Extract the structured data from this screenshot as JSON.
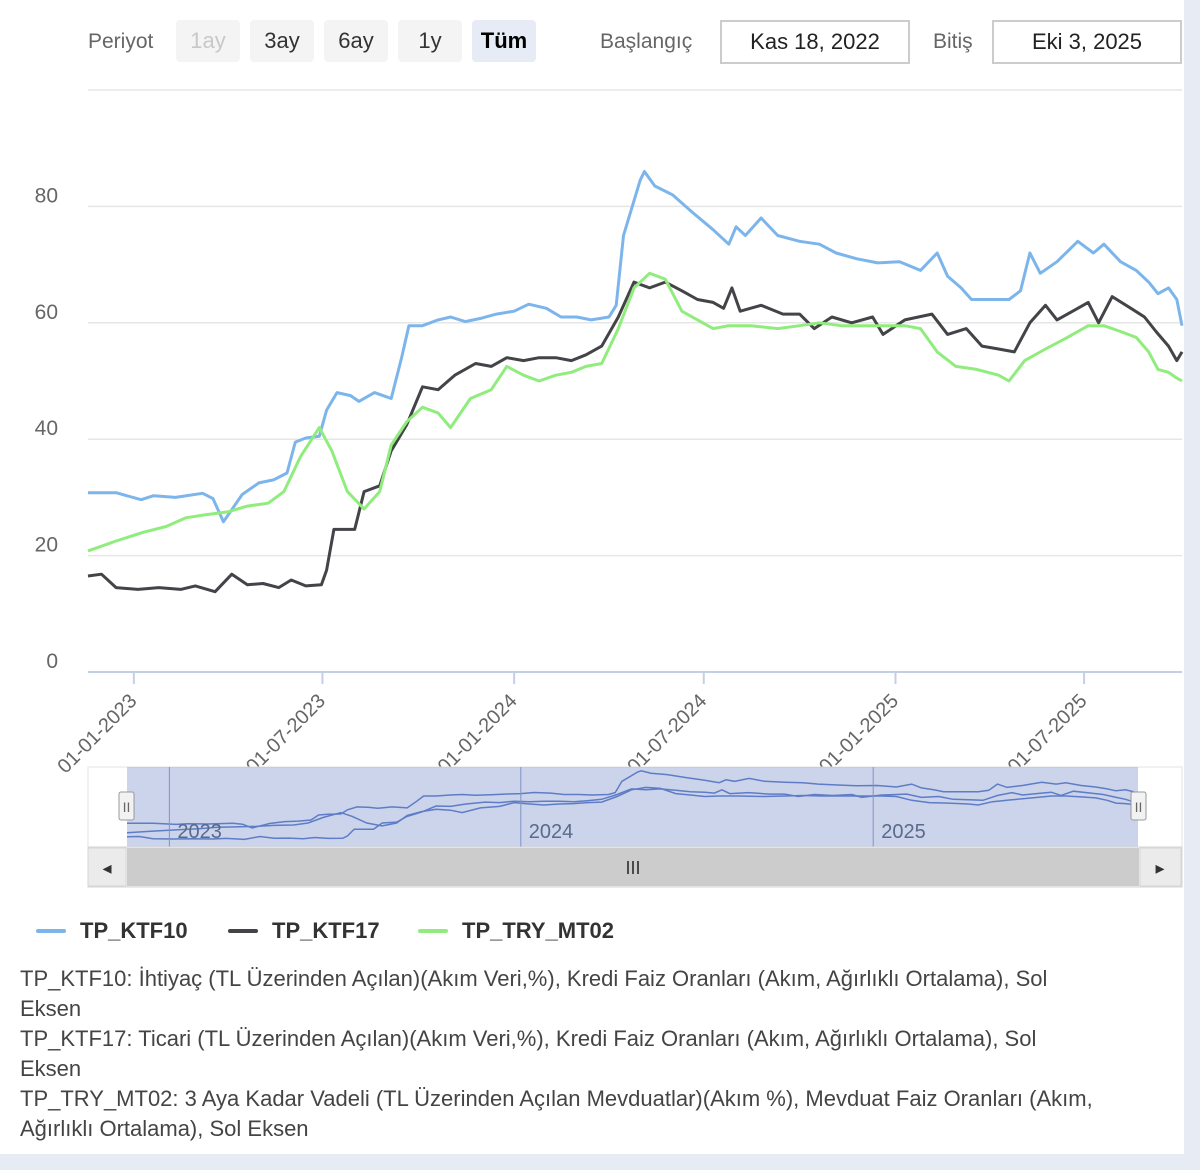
{
  "toolbar": {
    "period_label": "Periyot",
    "buttons": [
      {
        "label": "1ay",
        "state": "disabled"
      },
      {
        "label": "3ay",
        "state": "normal"
      },
      {
        "label": "6ay",
        "state": "normal"
      },
      {
        "label": "1y",
        "state": "normal"
      },
      {
        "label": "Tüm",
        "state": "active"
      }
    ],
    "start_label": "Başlangıç",
    "start_value": "Kas 18, 2022",
    "end_label": "Bitiş",
    "end_value": "Eki 3, 2025"
  },
  "navigator": {
    "year_labels": [
      "2023",
      "2024",
      "2025"
    ],
    "scroll_left_glyph": "◂",
    "scroll_right_glyph": "▸",
    "scroll_grip_glyph": "III",
    "handle_glyph": "II"
  },
  "legend": [
    {
      "name": "TP_KTF10",
      "color": "#7cb5ec"
    },
    {
      "name": "TP_KTF17",
      "color": "#434348"
    },
    {
      "name": "TP_TRY_MT02",
      "color": "#90ed7d"
    }
  ],
  "notes": [
    "TP_KTF10: İhtiyaç (TL Üzerinden Açılan)(Akım Veri,%), Kredi Faiz Oranları (Akım, Ağırlıklı Ortalama), Sol Eksen",
    "TP_KTF17: Ticari (TL Üzerinden Açılan)(Akım Veri,%), Kredi Faiz Oranları (Akım, Ağırlıklı Ortalama), Sol Eksen",
    "TP_TRY_MT02: 3 Aya Kadar Vadeli (TL Üzerinden Açılan Mevduatlar)(Akım %), Mevduat Faiz Oranları (Akım, Ağırlıklı Ortalama), Sol Eksen"
  ],
  "chart_data": {
    "type": "line",
    "title": "",
    "xlabel": "",
    "ylabel": "",
    "x_range": [
      "2022-11-18",
      "2025-10-03"
    ],
    "ylim": [
      0,
      100
    ],
    "yticks": [
      0,
      20,
      40,
      60,
      80
    ],
    "xticks": [
      "01-01-2023",
      "01-07-2023",
      "01-01-2024",
      "01-07-2024",
      "01-01-2025",
      "01-07-2025"
    ],
    "x_tick_dates": [
      "2023-01-01",
      "2023-07-01",
      "2024-01-01",
      "2024-07-01",
      "2025-01-01",
      "2025-07-01"
    ],
    "grid": true,
    "legend_position": "bottom-left",
    "series": [
      {
        "name": "TP_KTF10",
        "color": "#7cb5ec",
        "points": [
          [
            "2022-11-18",
            30.8
          ],
          [
            "2022-12-15",
            30.8
          ],
          [
            "2023-01-08",
            29.6
          ],
          [
            "2023-01-20",
            30.3
          ],
          [
            "2023-02-10",
            30.0
          ],
          [
            "2023-03-08",
            30.7
          ],
          [
            "2023-03-18",
            29.8
          ],
          [
            "2023-03-28",
            25.8
          ],
          [
            "2023-04-15",
            30.5
          ],
          [
            "2023-05-01",
            32.5
          ],
          [
            "2023-05-15",
            33.0
          ],
          [
            "2023-05-28",
            34.2
          ],
          [
            "2023-06-05",
            39.5
          ],
          [
            "2023-06-15",
            40.2
          ],
          [
            "2023-06-28",
            40.5
          ],
          [
            "2023-07-05",
            45.0
          ],
          [
            "2023-07-15",
            48.0
          ],
          [
            "2023-07-28",
            47.5
          ],
          [
            "2023-08-05",
            46.5
          ],
          [
            "2023-08-20",
            48.0
          ],
          [
            "2023-09-05",
            47.0
          ],
          [
            "2023-09-15",
            54.0
          ],
          [
            "2023-09-22",
            59.5
          ],
          [
            "2023-10-05",
            59.5
          ],
          [
            "2023-10-20",
            60.5
          ],
          [
            "2023-11-01",
            61.0
          ],
          [
            "2023-11-15",
            60.2
          ],
          [
            "2023-12-01",
            60.8
          ],
          [
            "2023-12-15",
            61.5
          ],
          [
            "2024-01-01",
            62.0
          ],
          [
            "2024-01-15",
            63.2
          ],
          [
            "2024-02-01",
            62.5
          ],
          [
            "2024-02-15",
            61.0
          ],
          [
            "2024-03-01",
            61.0
          ],
          [
            "2024-03-15",
            60.5
          ],
          [
            "2024-04-01",
            61.0
          ],
          [
            "2024-04-08",
            63.0
          ],
          [
            "2024-04-15",
            75.0
          ],
          [
            "2024-05-01",
            84.5
          ],
          [
            "2024-05-05",
            86.0
          ],
          [
            "2024-05-15",
            83.5
          ],
          [
            "2024-06-01",
            82.0
          ],
          [
            "2024-06-20",
            79.0
          ],
          [
            "2024-07-10",
            76.0
          ],
          [
            "2024-07-25",
            73.5
          ],
          [
            "2024-08-01",
            76.5
          ],
          [
            "2024-08-10",
            75.0
          ],
          [
            "2024-08-25",
            78.0
          ],
          [
            "2024-09-10",
            75.0
          ],
          [
            "2024-10-01",
            74.0
          ],
          [
            "2024-10-20",
            73.5
          ],
          [
            "2024-11-05",
            72.0
          ],
          [
            "2024-11-25",
            71.0
          ],
          [
            "2024-12-15",
            70.3
          ],
          [
            "2025-01-05",
            70.5
          ],
          [
            "2025-01-25",
            69.0
          ],
          [
            "2025-02-10",
            72.0
          ],
          [
            "2025-02-20",
            68.0
          ],
          [
            "2025-03-05",
            66.0
          ],
          [
            "2025-03-15",
            64.0
          ],
          [
            "2025-04-01",
            64.0
          ],
          [
            "2025-04-20",
            64.0
          ],
          [
            "2025-05-01",
            65.5
          ],
          [
            "2025-05-10",
            72.0
          ],
          [
            "2025-05-20",
            68.5
          ],
          [
            "2025-06-05",
            70.5
          ],
          [
            "2025-06-25",
            74.0
          ],
          [
            "2025-07-10",
            72.0
          ],
          [
            "2025-07-20",
            73.5
          ],
          [
            "2025-08-05",
            70.5
          ],
          [
            "2025-08-20",
            69.0
          ],
          [
            "2025-09-01",
            67.0
          ],
          [
            "2025-09-10",
            65.0
          ],
          [
            "2025-09-20",
            66.0
          ],
          [
            "2025-09-28",
            64.0
          ],
          [
            "2025-10-03",
            59.5
          ]
        ]
      },
      {
        "name": "TP_KTF17",
        "color": "#434348",
        "points": [
          [
            "2022-11-18",
            16.5
          ],
          [
            "2022-12-01",
            16.8
          ],
          [
            "2022-12-15",
            14.5
          ],
          [
            "2023-01-05",
            14.2
          ],
          [
            "2023-01-25",
            14.5
          ],
          [
            "2023-02-15",
            14.2
          ],
          [
            "2023-03-01",
            14.8
          ],
          [
            "2023-03-20",
            13.8
          ],
          [
            "2023-04-05",
            16.8
          ],
          [
            "2023-04-20",
            15.0
          ],
          [
            "2023-05-05",
            15.2
          ],
          [
            "2023-05-20",
            14.5
          ],
          [
            "2023-06-01",
            15.8
          ],
          [
            "2023-06-15",
            14.8
          ],
          [
            "2023-06-30",
            15.0
          ],
          [
            "2023-07-05",
            17.5
          ],
          [
            "2023-07-12",
            24.5
          ],
          [
            "2023-08-01",
            24.5
          ],
          [
            "2023-08-10",
            31.0
          ],
          [
            "2023-08-25",
            32.0
          ],
          [
            "2023-09-05",
            38.0
          ],
          [
            "2023-09-20",
            42.5
          ],
          [
            "2023-10-05",
            49.0
          ],
          [
            "2023-10-20",
            48.5
          ],
          [
            "2023-11-05",
            51.0
          ],
          [
            "2023-11-25",
            53.0
          ],
          [
            "2023-12-10",
            52.5
          ],
          [
            "2023-12-25",
            54.0
          ],
          [
            "2024-01-10",
            53.5
          ],
          [
            "2024-01-25",
            54.0
          ],
          [
            "2024-02-10",
            54.0
          ],
          [
            "2024-02-25",
            53.5
          ],
          [
            "2024-03-10",
            54.5
          ],
          [
            "2024-03-25",
            56.0
          ],
          [
            "2024-04-10",
            61.0
          ],
          [
            "2024-04-25",
            67.0
          ],
          [
            "2024-05-10",
            66.0
          ],
          [
            "2024-05-25",
            67.0
          ],
          [
            "2024-06-10",
            65.5
          ],
          [
            "2024-06-25",
            64.0
          ],
          [
            "2024-07-10",
            63.5
          ],
          [
            "2024-07-20",
            62.5
          ],
          [
            "2024-07-28",
            66.0
          ],
          [
            "2024-08-05",
            62.0
          ],
          [
            "2024-08-25",
            63.0
          ],
          [
            "2024-09-15",
            61.5
          ],
          [
            "2024-10-01",
            61.5
          ],
          [
            "2024-10-15",
            59.0
          ],
          [
            "2024-11-01",
            61.0
          ],
          [
            "2024-11-20",
            60.0
          ],
          [
            "2024-12-10",
            61.0
          ],
          [
            "2024-12-20",
            58.0
          ],
          [
            "2025-01-10",
            60.5
          ],
          [
            "2025-02-05",
            61.5
          ],
          [
            "2025-02-20",
            58.0
          ],
          [
            "2025-03-10",
            59.0
          ],
          [
            "2025-03-25",
            56.0
          ],
          [
            "2025-04-10",
            55.5
          ],
          [
            "2025-04-25",
            55.0
          ],
          [
            "2025-05-10",
            60.0
          ],
          [
            "2025-05-25",
            63.0
          ],
          [
            "2025-06-05",
            60.5
          ],
          [
            "2025-06-25",
            62.5
          ],
          [
            "2025-07-05",
            63.5
          ],
          [
            "2025-07-15",
            60.0
          ],
          [
            "2025-07-28",
            64.5
          ],
          [
            "2025-08-15",
            62.5
          ],
          [
            "2025-08-28",
            61.0
          ],
          [
            "2025-09-08",
            58.5
          ],
          [
            "2025-09-20",
            56.0
          ],
          [
            "2025-09-28",
            53.5
          ],
          [
            "2025-10-03",
            55.0
          ]
        ]
      },
      {
        "name": "TP_TRY_MT02",
        "color": "#90ed7d",
        "points": [
          [
            "2022-11-18",
            20.8
          ],
          [
            "2022-12-15",
            22.5
          ],
          [
            "2023-01-10",
            24.0
          ],
          [
            "2023-02-01",
            25.0
          ],
          [
            "2023-02-20",
            26.5
          ],
          [
            "2023-03-10",
            27.0
          ],
          [
            "2023-04-01",
            27.5
          ],
          [
            "2023-04-20",
            28.5
          ],
          [
            "2023-05-10",
            29.0
          ],
          [
            "2023-05-25",
            31.0
          ],
          [
            "2023-06-10",
            37.0
          ],
          [
            "2023-06-28",
            42.0
          ],
          [
            "2023-07-10",
            38.0
          ],
          [
            "2023-07-25",
            31.0
          ],
          [
            "2023-08-10",
            28.0
          ],
          [
            "2023-08-25",
            31.0
          ],
          [
            "2023-09-05",
            39.0
          ],
          [
            "2023-09-20",
            43.0
          ],
          [
            "2023-10-05",
            45.5
          ],
          [
            "2023-10-20",
            44.5
          ],
          [
            "2023-11-01",
            42.0
          ],
          [
            "2023-11-20",
            47.0
          ],
          [
            "2023-12-10",
            48.5
          ],
          [
            "2023-12-25",
            52.5
          ],
          [
            "2024-01-10",
            51.0
          ],
          [
            "2024-01-25",
            50.0
          ],
          [
            "2024-02-10",
            51.0
          ],
          [
            "2024-02-25",
            51.5
          ],
          [
            "2024-03-10",
            52.5
          ],
          [
            "2024-03-25",
            53.0
          ],
          [
            "2024-04-10",
            59.0
          ],
          [
            "2024-04-25",
            66.0
          ],
          [
            "2024-05-10",
            68.5
          ],
          [
            "2024-05-25",
            67.5
          ],
          [
            "2024-06-10",
            62.0
          ],
          [
            "2024-06-25",
            60.5
          ],
          [
            "2024-07-10",
            59.0
          ],
          [
            "2024-07-25",
            59.5
          ],
          [
            "2024-08-15",
            59.5
          ],
          [
            "2024-09-10",
            59.0
          ],
          [
            "2024-10-01",
            59.5
          ],
          [
            "2024-10-20",
            60.0
          ],
          [
            "2024-11-10",
            59.5
          ],
          [
            "2024-12-01",
            59.5
          ],
          [
            "2024-12-20",
            59.5
          ],
          [
            "2025-01-10",
            59.5
          ],
          [
            "2025-01-25",
            59.0
          ],
          [
            "2025-02-10",
            55.0
          ],
          [
            "2025-02-28",
            52.5
          ],
          [
            "2025-03-20",
            52.0
          ],
          [
            "2025-04-10",
            51.0
          ],
          [
            "2025-04-20",
            50.0
          ],
          [
            "2025-05-05",
            53.5
          ],
          [
            "2025-05-25",
            55.5
          ],
          [
            "2025-06-15",
            57.5
          ],
          [
            "2025-07-05",
            59.5
          ],
          [
            "2025-07-20",
            59.5
          ],
          [
            "2025-08-05",
            58.5
          ],
          [
            "2025-08-20",
            57.5
          ],
          [
            "2025-09-01",
            55.0
          ],
          [
            "2025-09-10",
            52.0
          ],
          [
            "2025-09-20",
            51.5
          ],
          [
            "2025-09-28",
            50.5
          ],
          [
            "2025-10-03",
            50.0
          ]
        ]
      }
    ]
  }
}
